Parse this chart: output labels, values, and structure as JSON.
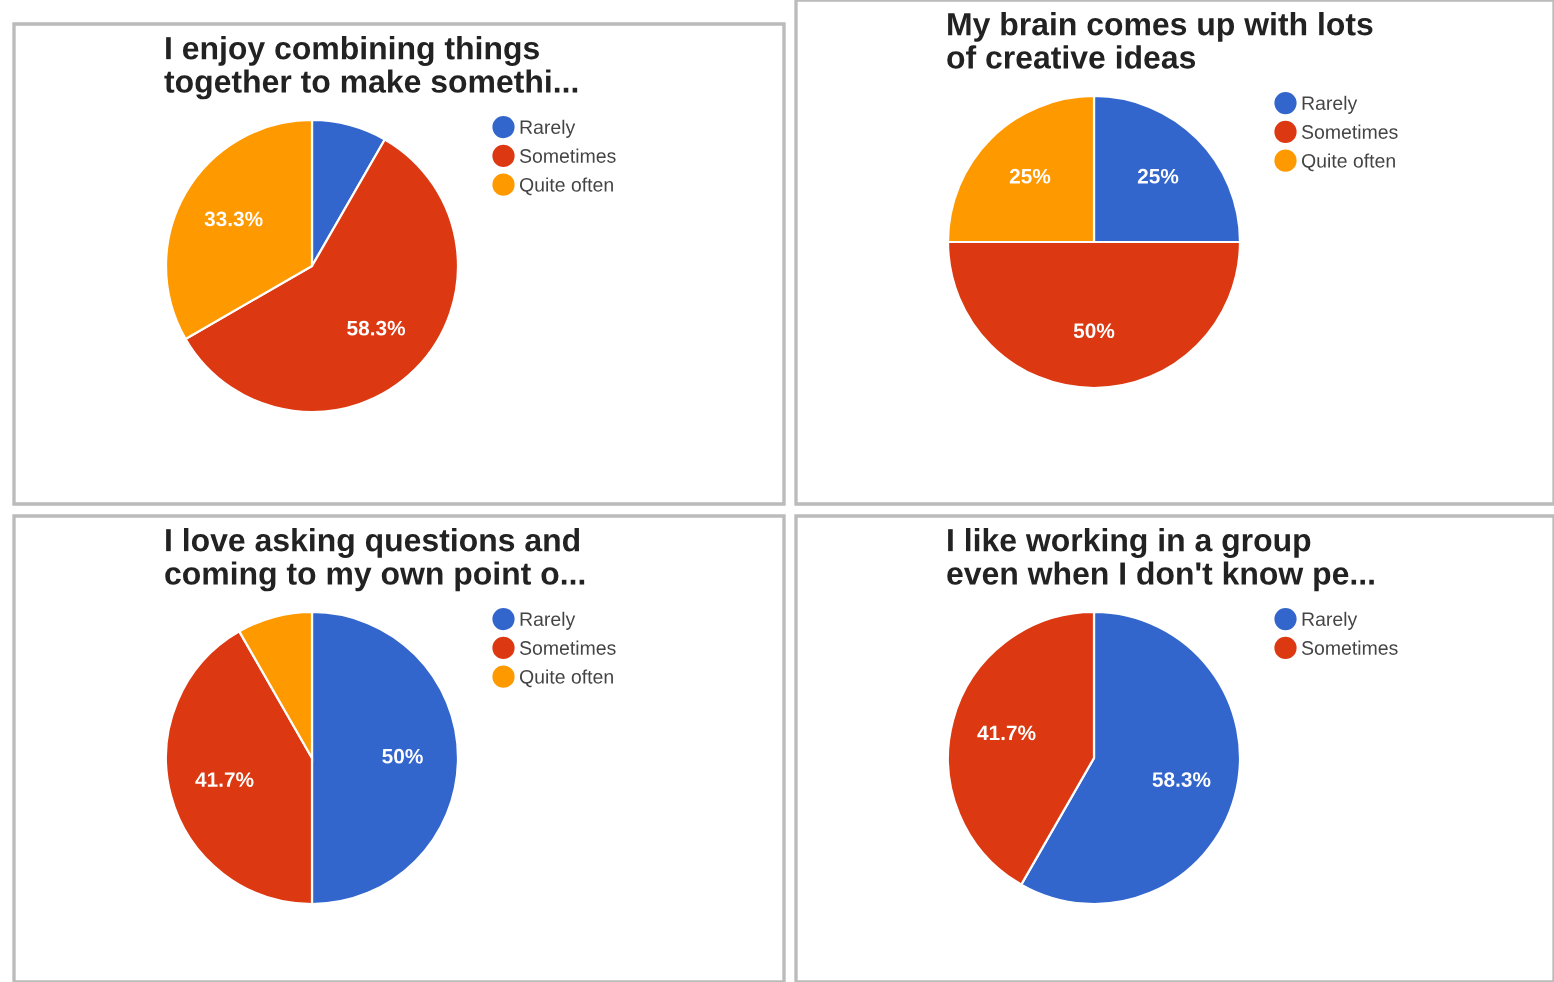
{
  "chart_data": [
    {
      "type": "pie",
      "title": "I enjoy combining things\ntogether to make somethi...",
      "categories": [
        "Rarely",
        "Sometimes",
        "Quite often"
      ],
      "values": [
        8.3,
        58.3,
        33.3
      ],
      "colors": [
        "#3366cc",
        "#dc3912",
        "#ff9900"
      ],
      "value_labels": [
        null,
        "58.3%",
        "33.3%"
      ],
      "legend": "right"
    },
    {
      "type": "pie",
      "title": "My brain comes up with lots\nof creative ideas",
      "categories": [
        "Rarely",
        "Sometimes",
        "Quite often"
      ],
      "values": [
        25,
        50,
        25
      ],
      "colors": [
        "#3366cc",
        "#dc3912",
        "#ff9900"
      ],
      "value_labels": [
        "25%",
        "50%",
        "25%"
      ],
      "legend": "right"
    },
    {
      "type": "pie",
      "title": "I love asking questions and\ncoming to my own point o...",
      "categories": [
        "Rarely",
        "Sometimes",
        "Quite often"
      ],
      "values": [
        50,
        41.7,
        8.3
      ],
      "colors": [
        "#3366cc",
        "#dc3912",
        "#ff9900"
      ],
      "value_labels": [
        "50%",
        "41.7%",
        null
      ],
      "legend": "right"
    },
    {
      "type": "pie",
      "title": "I like working in a group\neven when I don't know pe...",
      "categories": [
        "Rarely",
        "Sometimes"
      ],
      "values": [
        58.3,
        41.7
      ],
      "colors": [
        "#3366cc",
        "#dc3912"
      ],
      "value_labels": [
        "58.3%",
        "41.7%"
      ],
      "legend": "right"
    }
  ]
}
